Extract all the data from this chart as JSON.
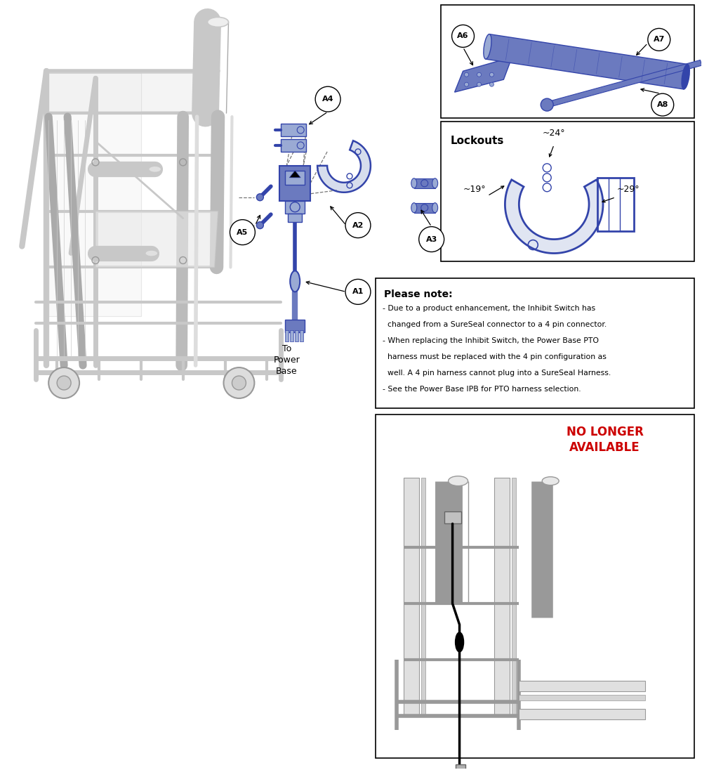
{
  "bg": "#ffffff",
  "black": "#000000",
  "blue": "#6b7abf",
  "blue_dark": "#3344aa",
  "blue_light": "#9aaad4",
  "grey_light": "#c8c8c8",
  "grey_mid": "#999999",
  "grey_dark": "#666666",
  "red": "#cc0000",
  "note_title": "Please note:",
  "note_lines": [
    "- Due to a product enhancement, the Inhibit Switch has",
    "  changed from a SureSeal connector to a 4 pin connector.",
    "- When replacing the Inhibit Switch, the Power Base PTO",
    "  harness must be replaced with the 4 pin configuration as",
    "  well. A 4 pin harness cannot plug into a SureSeal Harness.",
    "- See the Power Base IPB for PTO harness selection."
  ],
  "no_longer": "NO LONGER\nAVAILABLE",
  "lockouts_title": "Lockouts",
  "angles": [
    "~24°",
    "~19°",
    "~29°"
  ],
  "power_base": "To\nPower\nBase",
  "part_labels": [
    "A1",
    "A2",
    "A3",
    "A4",
    "A5",
    "A6",
    "A7",
    "A8"
  ]
}
